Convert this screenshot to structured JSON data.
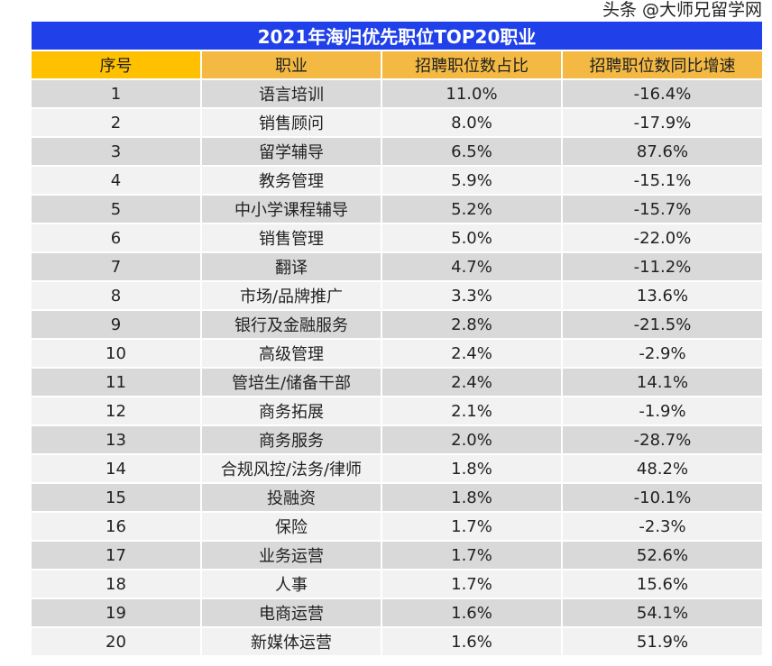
{
  "title": "2021年海归优先职位TOP20职业",
  "headers": [
    "序号",
    "职业",
    "招聘职位数占比",
    "招聘职位数同比增速"
  ],
  "rows": [
    [
      "1",
      "语言培训",
      "11.0%",
      "-16.4%"
    ],
    [
      "2",
      "销售顾问",
      "8.0%",
      "-17.9%"
    ],
    [
      "3",
      "留学辅导",
      "6.5%",
      "87.6%"
    ],
    [
      "4",
      "教务管理",
      "5.9%",
      "-15.1%"
    ],
    [
      "5",
      "中小学课程辅导",
      "5.2%",
      "-15.7%"
    ],
    [
      "6",
      "销售管理",
      "5.0%",
      "-22.0%"
    ],
    [
      "7",
      "翻译",
      "4.7%",
      "-11.2%"
    ],
    [
      "8",
      "市场/品牌推广",
      "3.3%",
      "13.6%"
    ],
    [
      "9",
      "银行及金融服务",
      "2.8%",
      "-21.5%"
    ],
    [
      "10",
      "高级管理",
      "2.4%",
      "-2.9%"
    ],
    [
      "11",
      "管培生/储备干部",
      "2.4%",
      "14.1%"
    ],
    [
      "12",
      "商务拓展",
      "2.1%",
      "-1.9%"
    ],
    [
      "13",
      "商务服务",
      "2.0%",
      "-28.7%"
    ],
    [
      "14",
      "合规风控/法务/律师",
      "1.8%",
      "48.2%"
    ],
    [
      "15",
      "投融资",
      "1.8%",
      "-10.1%"
    ],
    [
      "16",
      "保险",
      "1.7%",
      "-2.3%"
    ],
    [
      "17",
      "业务运营",
      "1.7%",
      "52.6%"
    ],
    [
      "18",
      "人事",
      "1.7%",
      "15.6%"
    ],
    [
      "19",
      "电商运营",
      "1.6%",
      "54.1%"
    ],
    [
      "20",
      "新媒体运营",
      "1.6%",
      "51.9%"
    ]
  ],
  "watermark": "头条 @大师兄留学网",
  "colors": {
    "title_bg": "#2040ea",
    "header_bg": "#f4b942",
    "header_first_bg": "#ffc000",
    "row_odd": "#d9d9d9",
    "row_even": "#f2f2f2"
  }
}
